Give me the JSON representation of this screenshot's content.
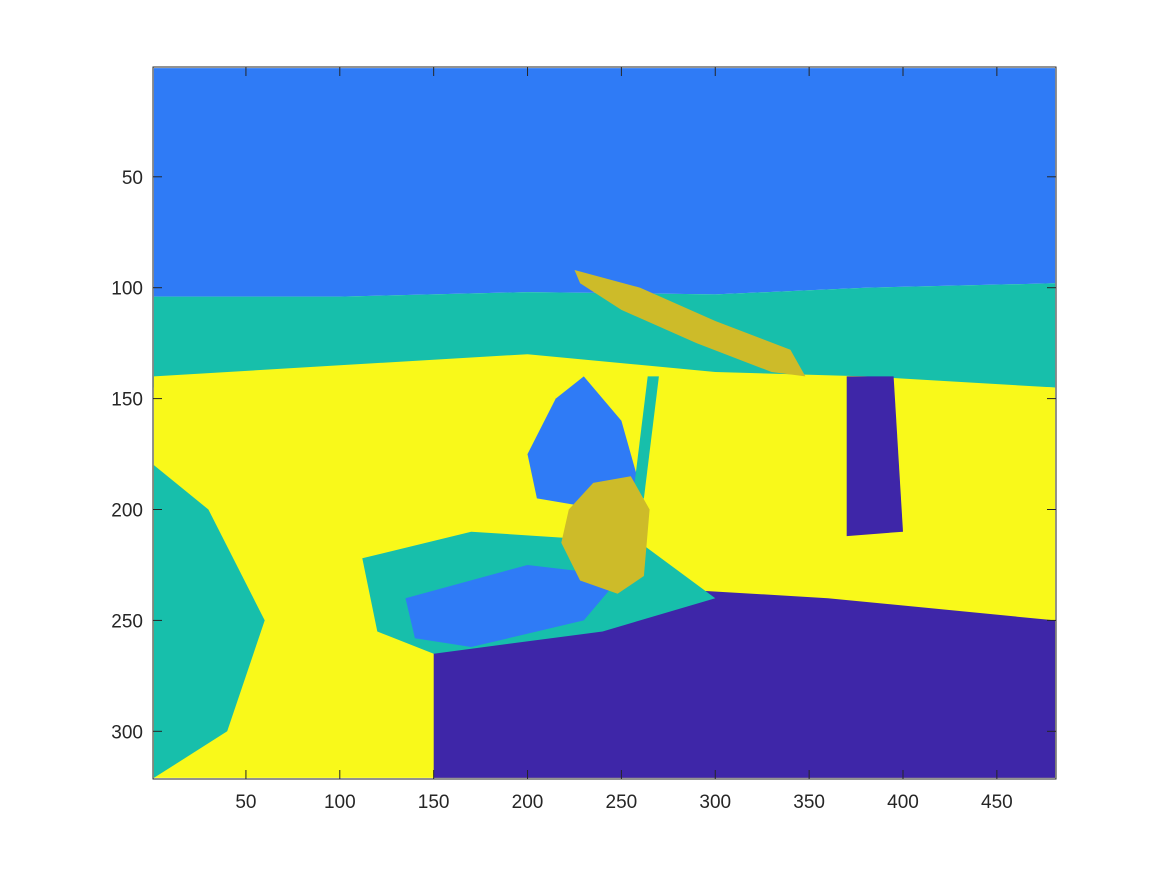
{
  "chart_data": {
    "type": "heatmap",
    "title": "",
    "xlabel": "",
    "ylabel": "",
    "xlim": [
      0.5,
      481.5
    ],
    "ylim": [
      0.5,
      321.5
    ],
    "y_reversed": true,
    "grid": false,
    "colors": {
      "class_1": "#3e26a8",
      "class_2": "#2f7bf6",
      "class_3": "#17bfab",
      "class_4": "#cdbb29",
      "class_5": "#f9f91a"
    },
    "xticks": [
      50,
      100,
      150,
      200,
      250,
      300,
      350,
      400,
      450
    ],
    "yticks": [
      50,
      100,
      150,
      200,
      250,
      300
    ],
    "xtick_labels": [
      "50",
      "100",
      "150",
      "200",
      "250",
      "300",
      "350",
      "400",
      "450"
    ],
    "ytick_labels": [
      "50",
      "100",
      "150",
      "200",
      "250",
      "300"
    ],
    "regions": [
      {
        "name": "sky",
        "class": "class_2",
        "polygon": [
          [
            1,
            1
          ],
          [
            481,
            1
          ],
          [
            481,
            98
          ],
          [
            380,
            100
          ],
          [
            300,
            103
          ],
          [
            200,
            102
          ],
          [
            100,
            104
          ],
          [
            1,
            104
          ]
        ]
      },
      {
        "name": "horizon-water",
        "class": "class_3",
        "polygon": [
          [
            1,
            104
          ],
          [
            100,
            104
          ],
          [
            200,
            102
          ],
          [
            300,
            103
          ],
          [
            380,
            100
          ],
          [
            481,
            98
          ],
          [
            481,
            145
          ],
          [
            380,
            142
          ],
          [
            300,
            140
          ],
          [
            200,
            135
          ],
          [
            100,
            140
          ],
          [
            1,
            145
          ]
        ]
      },
      {
        "name": "lower-water",
        "class": "class_5",
        "polygon": [
          [
            1,
            140
          ],
          [
            100,
            135
          ],
          [
            200,
            130
          ],
          [
            300,
            138
          ],
          [
            380,
            140
          ],
          [
            481,
            145
          ],
          [
            481,
            321
          ],
          [
            1,
            321
          ]
        ]
      },
      {
        "name": "left-water-edge",
        "class": "class_3",
        "polygon": [
          [
            1,
            180
          ],
          [
            30,
            200
          ],
          [
            60,
            250
          ],
          [
            40,
            300
          ],
          [
            1,
            321
          ]
        ]
      },
      {
        "name": "dark-ripples",
        "class": "class_1",
        "polygon": [
          [
            150,
            260
          ],
          [
            260,
            235
          ],
          [
            360,
            240
          ],
          [
            481,
            250
          ],
          [
            481,
            321
          ],
          [
            150,
            321
          ]
        ]
      },
      {
        "name": "reflection-dark",
        "class": "class_1",
        "polygon": [
          [
            370,
            140
          ],
          [
            395,
            140
          ],
          [
            400,
            210
          ],
          [
            370,
            212
          ]
        ]
      },
      {
        "name": "kayak-outer",
        "class": "class_3",
        "polygon": [
          [
            112,
            222
          ],
          [
            170,
            210
          ],
          [
            260,
            215
          ],
          [
            300,
            240
          ],
          [
            240,
            255
          ],
          [
            150,
            265
          ],
          [
            120,
            255
          ]
        ]
      },
      {
        "name": "kayak-inner",
        "class": "class_2",
        "polygon": [
          [
            135,
            240
          ],
          [
            200,
            225
          ],
          [
            250,
            230
          ],
          [
            230,
            250
          ],
          [
            170,
            262
          ],
          [
            140,
            258
          ]
        ]
      },
      {
        "name": "paddler-body",
        "class": "class_2",
        "polygon": [
          [
            200,
            175
          ],
          [
            215,
            150
          ],
          [
            230,
            140
          ],
          [
            250,
            160
          ],
          [
            260,
            190
          ],
          [
            240,
            200
          ],
          [
            205,
            195
          ]
        ]
      },
      {
        "name": "paddle-blade",
        "class": "class_4",
        "polygon": [
          [
            225,
            92
          ],
          [
            260,
            100
          ],
          [
            300,
            115
          ],
          [
            340,
            128
          ],
          [
            348,
            140
          ],
          [
            330,
            138
          ],
          [
            290,
            125
          ],
          [
            250,
            110
          ],
          [
            228,
            98
          ]
        ]
      },
      {
        "name": "paddle-shaft",
        "class": "class_3",
        "polygon": [
          [
            264,
            140
          ],
          [
            270,
            140
          ],
          [
            262,
            195
          ],
          [
            256,
            195
          ]
        ]
      },
      {
        "name": "hands-head",
        "class": "class_4",
        "polygon": [
          [
            222,
            200
          ],
          [
            235,
            188
          ],
          [
            255,
            185
          ],
          [
            265,
            200
          ],
          [
            262,
            230
          ],
          [
            248,
            238
          ],
          [
            228,
            232
          ],
          [
            218,
            215
          ]
        ]
      }
    ]
  }
}
